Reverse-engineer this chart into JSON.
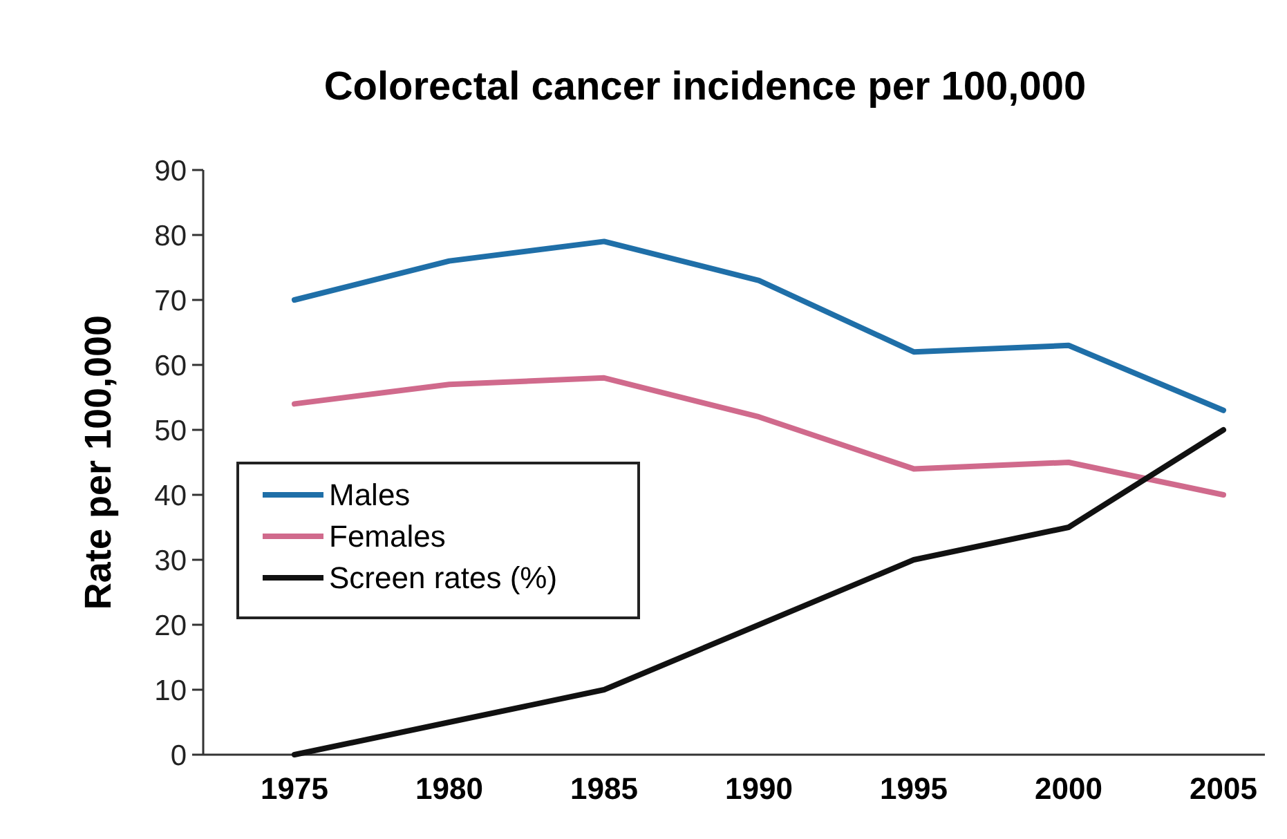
{
  "chart_data": {
    "type": "line",
    "title": "Colorectal cancer incidence per 100,000",
    "ylabel": "Rate per 100,000",
    "categories": [
      "1975",
      "1980",
      "1985",
      "1990",
      "1995",
      "2000",
      "2005"
    ],
    "series": [
      {
        "name": "Males",
        "color": "#1f6fa8",
        "values": [
          70,
          76,
          79,
          73,
          62,
          63,
          53
        ]
      },
      {
        "name": "Females",
        "color": "#d06a8c",
        "values": [
          54,
          57,
          58,
          52,
          44,
          45,
          40
        ]
      },
      {
        "name": "Screen rates (%)",
        "color": "#111111",
        "values": [
          0,
          5,
          10,
          20,
          30,
          35,
          50
        ]
      }
    ],
    "ylim": [
      0,
      90
    ],
    "yticks": [
      0,
      10,
      20,
      30,
      40,
      50,
      60,
      70,
      80,
      90
    ],
    "grid": false,
    "legend": "left",
    "marker": "none",
    "line_style": "solid"
  }
}
